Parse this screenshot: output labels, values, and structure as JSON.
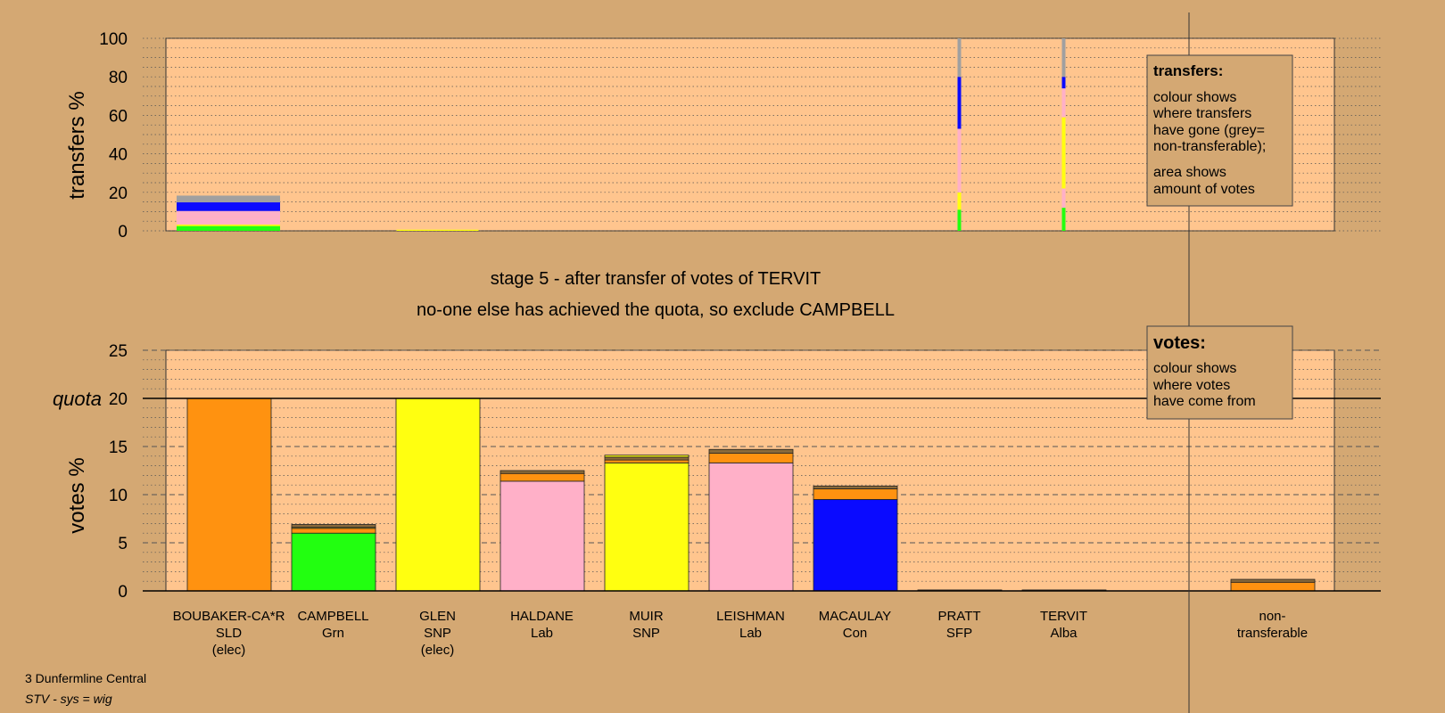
{
  "colors": {
    "background": "#d4a873",
    "plot_bg": "#ffc58e",
    "SLD": "#ff9210",
    "Grn": "#22ff10",
    "SNP": "#ffff10",
    "Lab": "#ffb0c8",
    "Con": "#0a0aff",
    "nontransferable": "#a0a0a0",
    "other": "#8a6a3a"
  },
  "headings": {
    "line1": "stage 5 - after transfer of votes of TERVIT",
    "line2": "no-one else has achieved the quota, so exclude CAMPBELL"
  },
  "legend_transfers": {
    "title": "transfers:",
    "lines1": [
      "colour shows",
      "where transfers",
      "have gone (grey=",
      "non-transferable);"
    ],
    "lines2": [
      "area shows",
      "amount of votes"
    ]
  },
  "legend_votes": {
    "title": "votes:",
    "lines": [
      "colour shows",
      "where votes",
      "have come from"
    ]
  },
  "footer": {
    "line1": "3 Dunfermline Central",
    "line2": "STV - sys = wig"
  },
  "chart_data": [
    {
      "type": "bar",
      "ylabel": "transfers %",
      "ylim": [
        0,
        100
      ],
      "yticks": [
        0,
        20,
        40,
        60,
        80,
        100
      ],
      "grid": true,
      "bars": [
        {
          "candidate": "BOUBAKER-CA*R",
          "segments": [
            {
              "party": "Grn",
              "value": 2.5
            },
            {
              "party": "SNP",
              "value": 0.8
            },
            {
              "party": "Lab",
              "value": 4.0
            },
            {
              "party": "Lab",
              "value": 3.0
            },
            {
              "party": "Con",
              "value": 4.5
            },
            {
              "party": "nontransferable",
              "value": 3.5
            }
          ]
        },
        {
          "candidate": "GLEN",
          "segments": [
            {
              "party": "SNP",
              "value": 0.6
            }
          ]
        },
        {
          "candidate": "PRATT",
          "segments": [
            {
              "party": "Grn",
              "value": 11
            },
            {
              "party": "SNP",
              "value": 9
            },
            {
              "party": "Lab",
              "value": 33
            },
            {
              "party": "Con",
              "value": 27
            },
            {
              "party": "nontransferable",
              "value": 20
            }
          ]
        },
        {
          "candidate": "TERVIT",
          "segments": [
            {
              "party": "Grn",
              "value": 12
            },
            {
              "party": "Lab",
              "value": 10
            },
            {
              "party": "SNP",
              "value": 37
            },
            {
              "party": "Lab",
              "value": 15
            },
            {
              "party": "Con",
              "value": 6
            },
            {
              "party": "nontransferable",
              "value": 20
            }
          ]
        }
      ]
    },
    {
      "type": "bar",
      "ylabel": "votes %",
      "ylim": [
        0,
        25
      ],
      "yticks": [
        0,
        5,
        10,
        15,
        20,
        25
      ],
      "quota": 20,
      "quota_label": "quota",
      "grid": true,
      "candidates": [
        {
          "name": "BOUBAKER-CA*R",
          "party": "SLD",
          "note": "(elec)",
          "segments": [
            {
              "party": "SLD",
              "value": 20.0
            }
          ]
        },
        {
          "name": "CAMPBELL",
          "party": "Grn",
          "note": "",
          "segments": [
            {
              "party": "Grn",
              "value": 6.0
            },
            {
              "party": "SLD",
              "value": 0.5
            },
            {
              "party": "SNP",
              "value": 0.1
            },
            {
              "party": "other",
              "value": 0.3
            }
          ]
        },
        {
          "name": "GLEN",
          "party": "SNP",
          "note": "(elec)",
          "segments": [
            {
              "party": "SNP",
              "value": 20.0
            }
          ]
        },
        {
          "name": "HALDANE",
          "party": "Lab",
          "note": "",
          "segments": [
            {
              "party": "Lab",
              "value": 11.4
            },
            {
              "party": "SLD",
              "value": 0.8
            },
            {
              "party": "other",
              "value": 0.3
            }
          ]
        },
        {
          "name": "MUIR",
          "party": "SNP",
          "note": "",
          "segments": [
            {
              "party": "SNP",
              "value": 13.3
            },
            {
              "party": "SLD",
              "value": 0.3
            },
            {
              "party": "other",
              "value": 0.3
            },
            {
              "party": "SNP",
              "value": 0.2
            }
          ]
        },
        {
          "name": "LEISHMAN",
          "party": "Lab",
          "note": "",
          "segments": [
            {
              "party": "Lab",
              "value": 13.3
            },
            {
              "party": "SLD",
              "value": 1.0
            },
            {
              "party": "other",
              "value": 0.4
            }
          ]
        },
        {
          "name": "MACAULAY",
          "party": "Con",
          "note": "",
          "segments": [
            {
              "party": "Con",
              "value": 9.5
            },
            {
              "party": "SLD",
              "value": 1.1
            },
            {
              "party": "other",
              "value": 0.3
            }
          ]
        },
        {
          "name": "PRATT",
          "party": "SFP",
          "note": "",
          "segments": [
            {
              "party": "other",
              "value": 0.1
            }
          ]
        },
        {
          "name": "TERVIT",
          "party": "Alba",
          "note": "",
          "segments": [
            {
              "party": "other",
              "value": 0.1
            }
          ]
        },
        {
          "name": "",
          "party": "",
          "note": "",
          "segments": []
        },
        {
          "name": "non-",
          "party": "transferable",
          "note": "",
          "segments": [
            {
              "party": "SLD",
              "value": 0.9
            },
            {
              "party": "other",
              "value": 0.3
            }
          ]
        }
      ]
    }
  ]
}
